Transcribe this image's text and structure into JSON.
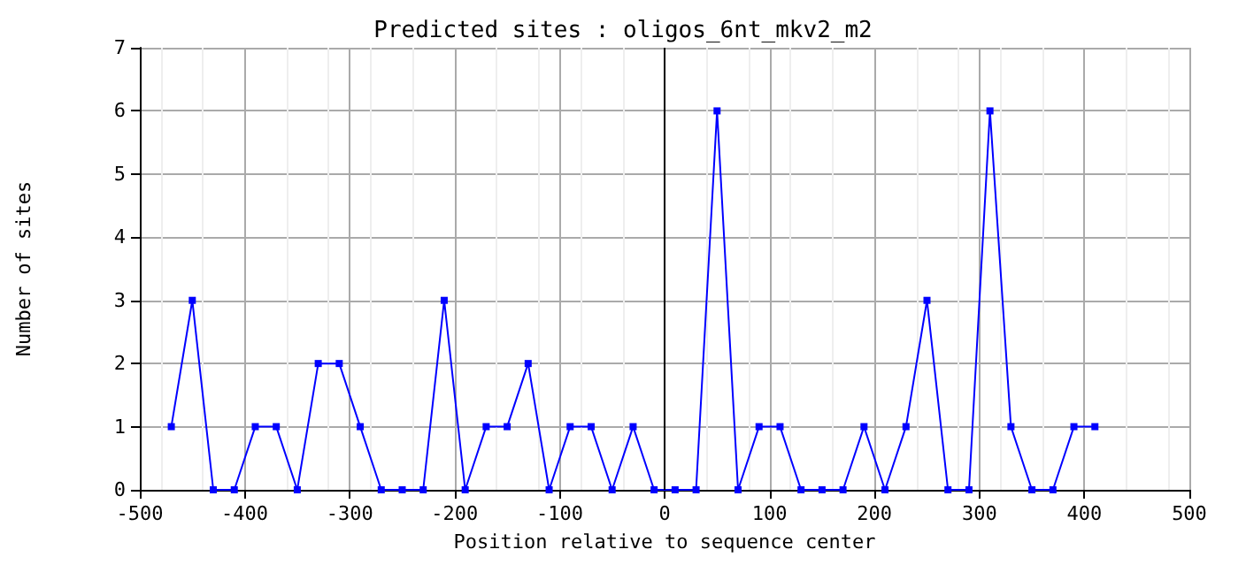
{
  "chart_data": {
    "type": "line",
    "title": "Predicted sites : oligos_6nt_mkv2_m2",
    "xlabel": "Position relative to sequence center",
    "ylabel": "Number of sites",
    "x": [
      -470,
      -450,
      -430,
      -410,
      -390,
      -370,
      -350,
      -330,
      -310,
      -290,
      -270,
      -250,
      -230,
      -210,
      -190,
      -170,
      -150,
      -130,
      -110,
      -90,
      -70,
      -50,
      -30,
      -10,
      10,
      30,
      50,
      70,
      90,
      110,
      130,
      150,
      170,
      190,
      210,
      230,
      250,
      270,
      290,
      310,
      330,
      350,
      370,
      390,
      410
    ],
    "series": [
      {
        "color": "#0000ff",
        "values": [
          1,
          3,
          0,
          0,
          1,
          1,
          0,
          2,
          2,
          1,
          0,
          0,
          0,
          3,
          0,
          1,
          1,
          2,
          0,
          1,
          1,
          0,
          1,
          0,
          0,
          0,
          6,
          0,
          1,
          1,
          0,
          0,
          0,
          1,
          0,
          1,
          3,
          0,
          0,
          6,
          1,
          0,
          0,
          1,
          1
        ]
      }
    ],
    "xlim": [
      -500,
      500
    ],
    "xticks": [
      -500,
      -400,
      -300,
      -200,
      -100,
      0,
      100,
      200,
      300,
      400,
      500
    ],
    "ylim": [
      0,
      7
    ],
    "yticks": [
      0,
      1,
      2,
      3,
      4,
      5,
      6,
      7
    ],
    "ref_lines": [
      {
        "axis": "x",
        "value": 0,
        "color": "#000000"
      }
    ],
    "grid": true,
    "marker": "square",
    "line_style": "solid"
  }
}
